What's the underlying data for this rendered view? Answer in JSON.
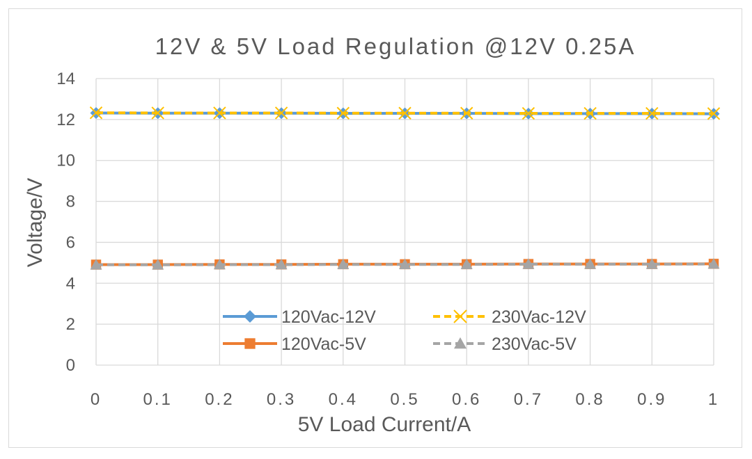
{
  "chart_data": {
    "type": "line",
    "title": "12V & 5V Load Regulation @12V 0.25A",
    "xlabel": "5V Load Current/A",
    "ylabel": "Voltage/V",
    "x": [
      0,
      0.1,
      0.2,
      0.3,
      0.4,
      0.5,
      0.6,
      0.7,
      0.8,
      0.9,
      1
    ],
    "x_tick_labels": [
      "0",
      "0.1",
      "0.2",
      "0.3",
      "0.4",
      "0.5",
      "0.6",
      "0.7",
      "0.8",
      "0.9",
      "1"
    ],
    "ylim": [
      0,
      14
    ],
    "y_ticks": [
      0,
      2,
      4,
      6,
      8,
      10,
      12,
      14
    ],
    "y_tick_labels": [
      "0",
      "2",
      "4",
      "6",
      "8",
      "10",
      "12",
      "14"
    ],
    "grid": true,
    "legend_position": "bottom-center",
    "series": [
      {
        "name": "120Vac-12V",
        "color": "#5b9bd5",
        "marker": "diamond",
        "dash": false,
        "values": [
          12.32,
          12.31,
          12.31,
          12.31,
          12.3,
          12.3,
          12.3,
          12.29,
          12.29,
          12.29,
          12.28
        ]
      },
      {
        "name": "230Vac-12V",
        "color": "#ffc000",
        "marker": "x",
        "dash": true,
        "values": [
          12.33,
          12.32,
          12.32,
          12.32,
          12.31,
          12.31,
          12.31,
          12.3,
          12.3,
          12.3,
          12.29
        ]
      },
      {
        "name": "120Vac-5V",
        "color": "#ed7d31",
        "marker": "square",
        "dash": false,
        "values": [
          4.91,
          4.91,
          4.92,
          4.92,
          4.93,
          4.93,
          4.93,
          4.94,
          4.94,
          4.94,
          4.95
        ]
      },
      {
        "name": "230Vac-5V",
        "color": "#a5a5a5",
        "marker": "triangle",
        "dash": true,
        "values": [
          4.9,
          4.9,
          4.91,
          4.91,
          4.92,
          4.92,
          4.92,
          4.93,
          4.93,
          4.93,
          4.94
        ]
      }
    ]
  }
}
